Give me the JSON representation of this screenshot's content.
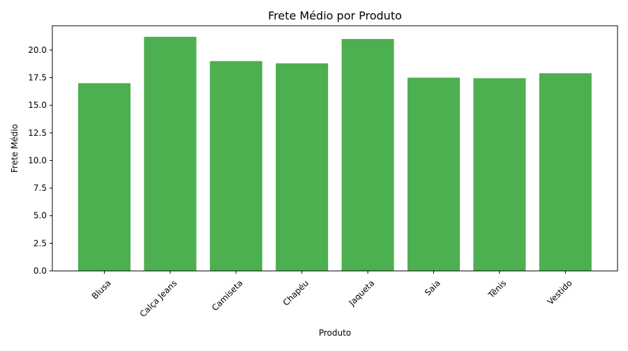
{
  "chart_data": {
    "type": "bar",
    "title": "Frete Médio por Produto",
    "xlabel": "Produto",
    "ylabel": "Frete Médio",
    "categories": [
      "Blusa",
      "Calça Jeans",
      "Camiseta",
      "Chapéu",
      "Jaqueta",
      "Saia",
      "Tênis",
      "Vestido"
    ],
    "values": [
      17.0,
      21.2,
      19.0,
      18.8,
      21.0,
      17.5,
      17.45,
      17.9
    ],
    "ylim": [
      0,
      22.2
    ],
    "yticks": [
      "0.0",
      "2.5",
      "5.0",
      "7.5",
      "10.0",
      "12.5",
      "15.0",
      "17.5",
      "20.0"
    ],
    "bar_color": "#4caf50",
    "grid": false,
    "legend": "none",
    "xtick_rotation": "45 degrees"
  }
}
